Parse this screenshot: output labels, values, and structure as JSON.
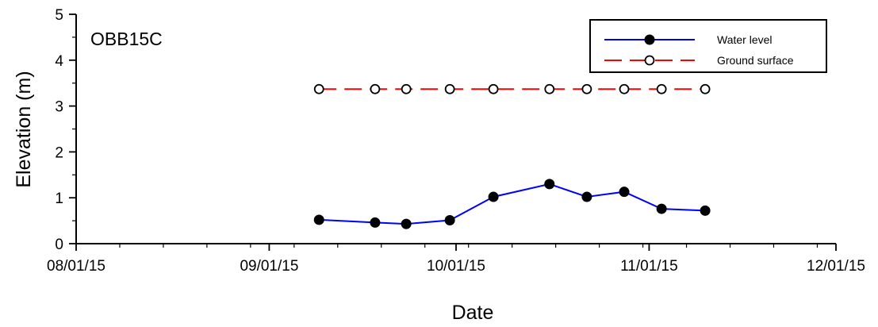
{
  "chart_data": {
    "type": "line",
    "panel_label": "OBB15C",
    "xlabel": "Date",
    "ylabel": "Elevation (m)",
    "xlim": [
      "2015-08-01",
      "2015-12-01"
    ],
    "ylim": [
      0,
      5
    ],
    "x_ticks": [
      {
        "date": "2015-08-01",
        "label": "08/01/15"
      },
      {
        "date": "2015-09-01",
        "label": "09/01/15"
      },
      {
        "date": "2015-10-01",
        "label": "10/01/15"
      },
      {
        "date": "2015-11-01",
        "label": "11/01/15"
      },
      {
        "date": "2015-12-01",
        "label": "12/01/15"
      }
    ],
    "y_ticks": [
      0,
      1,
      2,
      3,
      4,
      5
    ],
    "grid": false,
    "legend_position": "top-right",
    "series": [
      {
        "name": "Water level",
        "color": "#0000ff",
        "line_style": "solid",
        "marker": "filled-circle",
        "points": [
          {
            "x": "2015-09-09",
            "y": 0.52
          },
          {
            "x": "2015-09-18",
            "y": 0.46
          },
          {
            "x": "2015-09-23",
            "y": 0.43
          },
          {
            "x": "2015-09-30",
            "y": 0.51
          },
          {
            "x": "2015-10-07",
            "y": 1.02
          },
          {
            "x": "2015-10-16",
            "y": 1.3
          },
          {
            "x": "2015-10-22",
            "y": 1.02
          },
          {
            "x": "2015-10-28",
            "y": 1.13
          },
          {
            "x": "2015-11-03",
            "y": 0.76
          },
          {
            "x": "2015-11-10",
            "y": 0.72
          }
        ]
      },
      {
        "name": "Ground surface",
        "color": "#ff0000",
        "line_style": "dashed",
        "marker": "open-circle",
        "points": [
          {
            "x": "2015-09-09",
            "y": 3.37
          },
          {
            "x": "2015-09-18",
            "y": 3.37
          },
          {
            "x": "2015-09-23",
            "y": 3.37
          },
          {
            "x": "2015-09-30",
            "y": 3.37
          },
          {
            "x": "2015-10-07",
            "y": 3.37
          },
          {
            "x": "2015-10-16",
            "y": 3.37
          },
          {
            "x": "2015-10-22",
            "y": 3.37
          },
          {
            "x": "2015-10-28",
            "y": 3.37
          },
          {
            "x": "2015-11-03",
            "y": 3.37
          },
          {
            "x": "2015-11-10",
            "y": 3.37
          }
        ]
      }
    ]
  }
}
